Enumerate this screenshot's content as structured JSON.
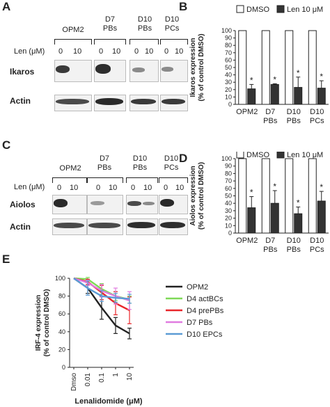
{
  "panel_labels": {
    "A": "A",
    "B": "B",
    "C": "C",
    "D": "D",
    "E": "E"
  },
  "blot_A": {
    "groups": [
      "OPM2",
      "D7\nPBs",
      "D10 PBs",
      "D10\nPCs"
    ],
    "group_lines": [
      [
        "OPM2"
      ],
      [
        "D7",
        "PBs"
      ],
      [
        "D10",
        "PBs"
      ],
      [
        "D10",
        "PCs"
      ]
    ],
    "len_label": "Len (μM)",
    "doses": [
      "0",
      "10"
    ],
    "rows": [
      "Ikaros",
      "Actin"
    ]
  },
  "blot_C": {
    "group_lines": [
      [
        "OPM2"
      ],
      [
        "D7",
        "PBs"
      ],
      [
        "D10",
        "PBs"
      ],
      [
        "D10",
        "PCs"
      ]
    ],
    "len_label": "Len (μM)",
    "doses": [
      "0",
      "10"
    ],
    "rows": [
      "Aiolos",
      "Actin"
    ]
  },
  "chart_data": [
    {
      "type": "bar",
      "panel": "B",
      "categories": [
        "OPM2",
        "D7 PBs",
        "D10 PBs",
        "D10 PCs"
      ],
      "category_lines": [
        [
          "OPM2"
        ],
        [
          "D7",
          "PBs"
        ],
        [
          "D10",
          "PBs"
        ],
        [
          "D10",
          "PCs"
        ]
      ],
      "series": [
        {
          "name": "DMSO",
          "values": [
            100,
            100,
            100,
            100
          ],
          "color": "#ffffff"
        },
        {
          "name": "Len 10 μM",
          "values": [
            21,
            27,
            23,
            22
          ],
          "errors": [
            6,
            1,
            14,
            10
          ],
          "color": "#333333"
        }
      ],
      "significance": [
        "*",
        "*",
        "*",
        "*"
      ],
      "ylabel": [
        "Ikaros expression",
        "(% of control DMSO)"
      ],
      "ylim": [
        0,
        100
      ],
      "yticks": [
        0,
        10,
        20,
        30,
        40,
        50,
        60,
        70,
        80,
        90,
        100
      ],
      "legend_position": "top"
    },
    {
      "type": "bar",
      "panel": "D",
      "categories": [
        "OPM2",
        "D7 PBs",
        "D10 PBs",
        "D10 PCs"
      ],
      "category_lines": [
        [
          "OPM2"
        ],
        [
          "D7",
          "PBs"
        ],
        [
          "D10",
          "PBs"
        ],
        [
          "D10",
          "PCs"
        ]
      ],
      "series": [
        {
          "name": "DMSO",
          "values": [
            100,
            100,
            100,
            100
          ],
          "color": "#ffffff"
        },
        {
          "name": "Len 10 μM",
          "values": [
            34,
            40,
            26,
            43
          ],
          "errors": [
            15,
            17,
            9,
            13
          ],
          "color": "#333333"
        }
      ],
      "significance": [
        "*",
        "*",
        "*",
        "*"
      ],
      "ylabel": [
        "Aiolos expression",
        "(% of control DMSO)"
      ],
      "ylim": [
        0,
        100
      ],
      "yticks": [
        0,
        10,
        20,
        30,
        40,
        50,
        60,
        70,
        80,
        90,
        100
      ],
      "legend_position": "top"
    },
    {
      "type": "line",
      "panel": "E",
      "categories": [
        "Dmso",
        "0.01",
        "0.1",
        "1",
        "10"
      ],
      "series": [
        {
          "name": "OPM2",
          "values": [
            100,
            89,
            67,
            47,
            38
          ],
          "errors": [
            0,
            6,
            13,
            9,
            6
          ],
          "color": "#222222"
        },
        {
          "name": "D4 actBCs",
          "values": [
            100,
            99,
            88,
            80,
            76
          ],
          "errors": [
            0,
            2,
            6,
            5,
            4
          ],
          "color": "#7ed957"
        },
        {
          "name": "D4 prePBs",
          "values": [
            100,
            96,
            84,
            72,
            64
          ],
          "errors": [
            0,
            3,
            8,
            13,
            15
          ],
          "color": "#e8262a"
        },
        {
          "name": "D7 PBs",
          "values": [
            100,
            95,
            86,
            80,
            75
          ],
          "errors": [
            0,
            3,
            7,
            9,
            10
          ],
          "color": "#e07be0"
        },
        {
          "name": "D10 EPCs",
          "values": [
            100,
            89,
            80,
            78,
            77
          ],
          "errors": [
            0,
            8,
            6,
            5,
            5
          ],
          "color": "#5b9bd5"
        }
      ],
      "ylabel": [
        "IRF-4 expression",
        "(% of control DMSO)"
      ],
      "xlabel": "Lenalidomide (μM)",
      "ylim": [
        0,
        100
      ],
      "yticks": [
        0,
        20,
        40,
        60,
        80,
        100
      ],
      "legend_position": "right"
    }
  ]
}
